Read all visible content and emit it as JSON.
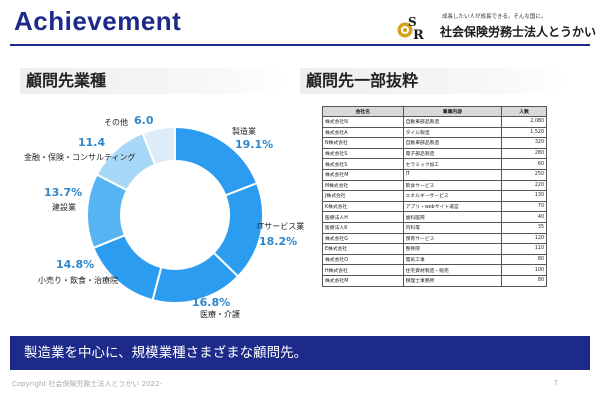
{
  "header": {
    "title": "Achievement",
    "tagline": "成長したい人が成長できる。そんな国に。",
    "company_name": "社会保険労務士法人とうかい"
  },
  "left_section": {
    "heading": "顧問先業種"
  },
  "right_section": {
    "heading": "顧問先一部抜粋"
  },
  "chart_data": {
    "type": "pie",
    "categories": [
      "製造業",
      "ITサービス業",
      "医療・介護",
      "小売り・飲食・治療院",
      "建設業",
      "金融・保険・コンサルティング",
      "その他"
    ],
    "values": [
      19.1,
      18.2,
      16.8,
      14.8,
      13.7,
      11.4,
      6.0
    ],
    "value_labels": [
      "19.1%",
      "18.2%",
      "16.8%",
      "14.8%",
      "13.7%",
      "11.4",
      "6.0"
    ],
    "colors": [
      "#2b9cf0",
      "#2b9cf0",
      "#2b9cf0",
      "#2b9cf0",
      "#56b4f2",
      "#a7d8f7",
      "#dcedf9"
    ],
    "title": ""
  },
  "table": {
    "headers": [
      "会社名",
      "事業内容",
      "人数"
    ],
    "rows": [
      [
        "株式会社N",
        "自動車部品製造",
        "2,080"
      ],
      [
        "株式会社A",
        "タイル製造",
        "1,520"
      ],
      [
        "N株式会社",
        "自動車部品製造",
        "320"
      ],
      [
        "株式会社S",
        "電子部品製造",
        "280"
      ],
      [
        "株式会社S",
        "セラミック加工",
        "60"
      ],
      [
        "株式会社M",
        "IT",
        "250"
      ],
      [
        "M株式会社",
        "飲食サービス",
        "220"
      ],
      [
        "J株式会社",
        "エネルギーサービス",
        "130"
      ],
      [
        "K株式会社",
        "アプリ・webサイト運営",
        "70"
      ],
      [
        "医療法人H",
        "歯科医院",
        "40"
      ],
      [
        "医療法人K",
        "内科等",
        "35"
      ],
      [
        "株式会社G",
        "保育サービス",
        "120"
      ],
      [
        "E株式会社",
        "整骨院",
        "110"
      ],
      [
        "株式会社O",
        "電気工事",
        "80"
      ],
      [
        "H株式会社",
        "住宅資材製造・販売",
        "100"
      ],
      [
        "株式会社M",
        "税理士事務所",
        "80"
      ]
    ]
  },
  "banner": {
    "text": "製造業を中心に、規模業種さまざまな顧問先。"
  },
  "footer": {
    "copyright": "Copyright 社会保険労務士法人とうかい 2022-",
    "page_number": "7"
  }
}
